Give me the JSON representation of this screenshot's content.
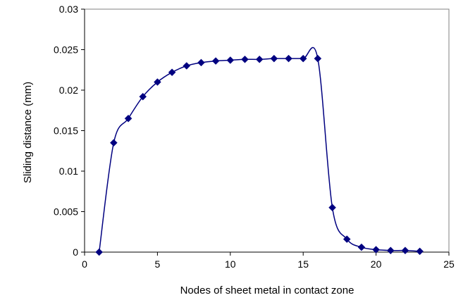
{
  "chart_data": {
    "type": "scatter",
    "title": "",
    "xlabel": "Nodes of sheet metal in contact zone",
    "ylabel": "Sliding distance (mm)",
    "xlim": [
      0,
      25
    ],
    "ylim": [
      0,
      0.03
    ],
    "x_ticks": [
      0,
      5,
      10,
      15,
      20,
      25
    ],
    "y_ticks": [
      0,
      0.005,
      0.01,
      0.015,
      0.02,
      0.025,
      0.03
    ],
    "x_tick_labels": [
      "0",
      "5",
      "10",
      "15",
      "20",
      "25"
    ],
    "y_tick_labels": [
      "0",
      "0.005",
      "0.01",
      "0.015",
      "0.02",
      "0.025",
      "0.03"
    ],
    "grid": false,
    "legend": "none",
    "line_style": "smoothed line with diamond markers",
    "series": [
      {
        "color": "#000080",
        "marker": "diamond",
        "x": [
          1,
          2,
          3,
          4,
          5,
          6,
          7,
          8,
          9,
          10,
          11,
          12,
          13,
          14,
          15,
          16,
          17,
          18,
          19,
          20,
          21,
          22,
          23
        ],
        "y": [
          0,
          0.0135,
          0.0165,
          0.0192,
          0.021,
          0.0222,
          0.023,
          0.0234,
          0.0236,
          0.0237,
          0.0238,
          0.0238,
          0.0239,
          0.0239,
          0.0239,
          0.0239,
          0.0055,
          0.0016,
          0.0006,
          0.0003,
          0.0002,
          0.0002,
          0.0001
        ]
      }
    ]
  }
}
